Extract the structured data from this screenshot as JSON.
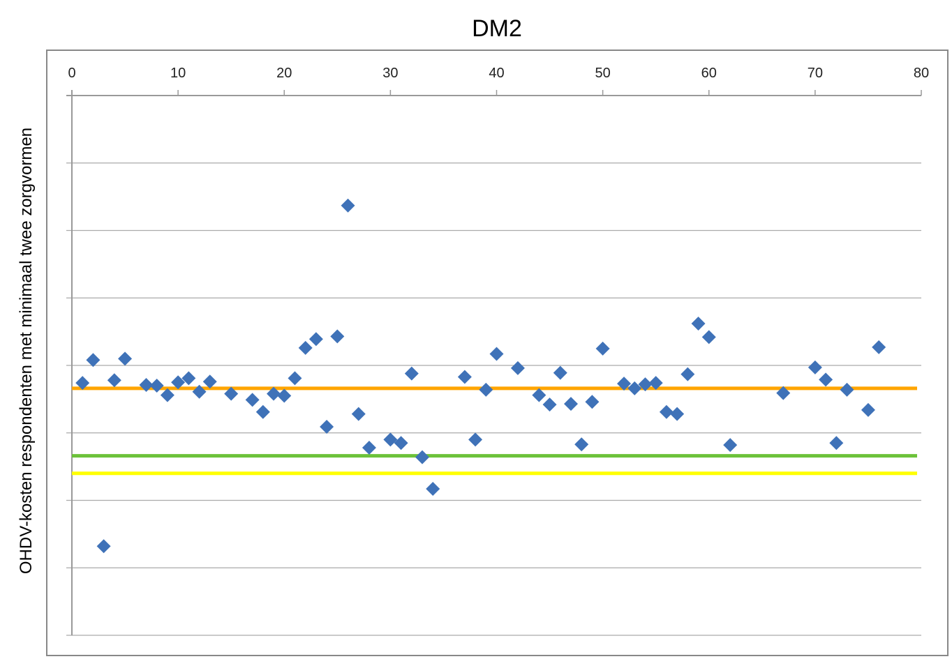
{
  "chart_data": {
    "type": "scatter",
    "title": "DM2",
    "xlabel": "",
    "ylabel": "OHDV-kosten respondenten met minimaal twee zorgvormen",
    "x_axis_position": "top",
    "xlim": [
      0,
      80
    ],
    "xticks": [
      "0",
      "10",
      "20",
      "30",
      "40",
      "50",
      "60",
      "70",
      "80"
    ],
    "ylim": [
      0,
      8
    ],
    "y_tick_labels_shown": false,
    "grid": true,
    "marker": "diamond",
    "colors": {
      "points": "#3f72b8",
      "orange_line": "#ffa500",
      "green_line": "#6cc23a",
      "yellow_line": "#ffff00"
    },
    "series": [
      {
        "x": [
          1,
          2,
          3,
          4,
          5,
          7,
          8,
          9,
          10,
          11,
          12,
          13,
          15,
          17,
          18,
          19,
          20,
          21,
          22,
          23,
          24,
          25,
          26,
          27,
          28,
          30,
          31,
          32,
          33,
          34,
          37,
          38,
          39,
          40,
          42,
          44,
          45,
          46,
          47,
          48,
          49,
          50,
          52,
          53,
          54,
          55,
          56,
          57,
          58,
          59,
          60,
          62,
          67,
          70,
          71,
          72,
          73,
          75,
          76
        ],
        "y": [
          3.74,
          4.08,
          1.32,
          3.78,
          4.1,
          3.71,
          3.7,
          3.56,
          3.75,
          3.81,
          3.61,
          3.76,
          3.58,
          3.49,
          3.31,
          3.58,
          3.55,
          3.81,
          4.26,
          4.39,
          3.09,
          4.43,
          6.37,
          3.28,
          2.78,
          2.9,
          2.85,
          3.88,
          2.64,
          2.17,
          3.83,
          2.9,
          3.64,
          4.17,
          3.96,
          3.56,
          3.42,
          3.89,
          3.43,
          2.83,
          3.46,
          4.25,
          3.73,
          3.66,
          3.72,
          3.74,
          3.31,
          3.28,
          3.87,
          4.62,
          4.42,
          2.82,
          3.59,
          3.97,
          3.79,
          2.85,
          3.64,
          3.34,
          4.27
        ]
      }
    ],
    "reference_lines": [
      {
        "color": "orange",
        "y": 3.66
      },
      {
        "color": "green",
        "y": 2.66
      },
      {
        "color": "yellow",
        "y": 2.4
      }
    ]
  }
}
